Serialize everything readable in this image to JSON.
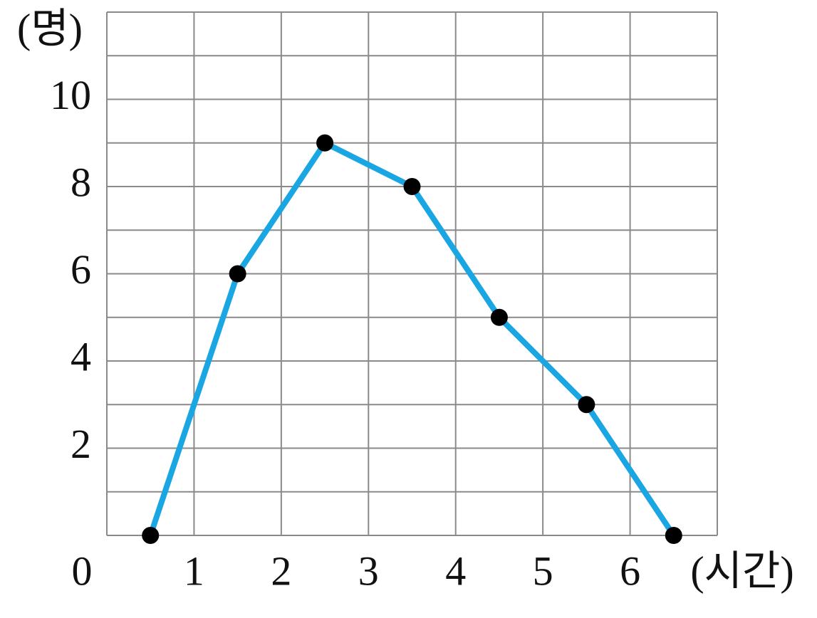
{
  "chart_data": {
    "type": "line",
    "y_label": "(명)",
    "x_label": "(시간)",
    "x": [
      0.5,
      1.5,
      2.5,
      3.5,
      4.5,
      5.5,
      6.5
    ],
    "values": [
      0,
      6,
      9,
      8,
      5,
      3,
      0
    ],
    "color": "#1aa5e3",
    "marker_color": "#000000",
    "xlim": [
      0,
      7
    ],
    "ylim": [
      0,
      12
    ],
    "xticks": [
      0,
      1,
      2,
      3,
      4,
      5,
      6
    ],
    "yticks": [
      2,
      4,
      6,
      8,
      10
    ],
    "xgrid": [
      0,
      1,
      2,
      3,
      4,
      5,
      6,
      7
    ],
    "ygrid": [
      0,
      1,
      2,
      3,
      4,
      5,
      6,
      7,
      8,
      9,
      10,
      11,
      12
    ],
    "grid": true
  }
}
